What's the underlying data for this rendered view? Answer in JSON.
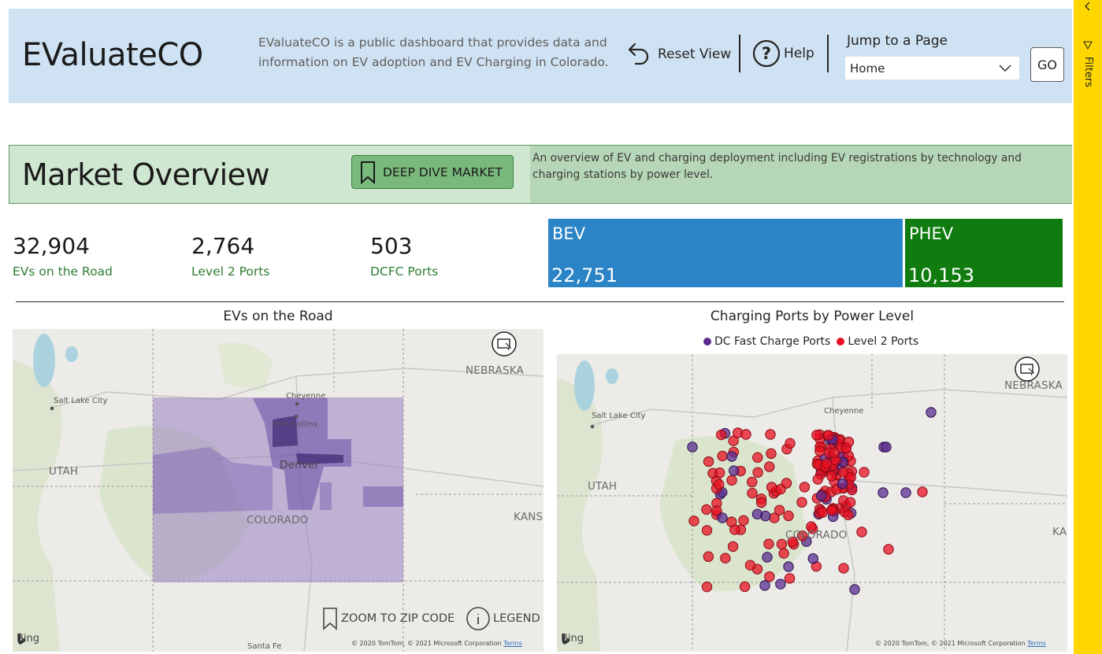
{
  "header": {
    "title": "EValuateCO",
    "description": "EValuateCO is a public dashboard that provides data and information on EV adoption and EV Charging in Colorado.",
    "reset_label": "Reset View",
    "help_label": "Help",
    "jump_label": "Jump to a Page",
    "page_select_value": "Home",
    "go_label": "GO"
  },
  "filters_pane": {
    "label": "Filters"
  },
  "market": {
    "title": "Market Overview",
    "deep_dive_label": "DEEP DIVE MARKET",
    "description": "An overview of EV and charging deployment including EV registrations by technology and charging stations by power level."
  },
  "kpis": [
    {
      "value": "32,904",
      "label": "EVs on the Road"
    },
    {
      "value": "2,764",
      "label": "Level 2 Ports"
    },
    {
      "value": "503",
      "label": "DCFC Ports"
    }
  ],
  "tech_split": {
    "bev": {
      "name": "BEV",
      "value": "22,751",
      "color": "#2a84c6"
    },
    "phev": {
      "name": "PHEV",
      "value": "10,153",
      "color": "#107c10"
    }
  },
  "map_left": {
    "title": "EVs on the Road",
    "labels": {
      "nebraska": "NEBRASKA",
      "utah": "UTAH",
      "colorado": "COLORADO",
      "kansas": "KANSA",
      "salt_lake": "Salt Lake City",
      "cheyenne": "Cheyenne",
      "fort_collins": "Fort Collins",
      "denver": "Denver",
      "santa_fe": "Santa Fe"
    },
    "zoom_zip_label": "ZOOM TO ZIP CODE",
    "legend_label": "LEGEND",
    "bing": "Bing",
    "copyright": "© 2020 TomTom, © 2021 Microsoft Corporation",
    "terms": "Terms"
  },
  "map_right": {
    "title": "Charging Ports by Power Level",
    "legend": [
      {
        "name": "DC Fast Charge Ports",
        "color": "#5c2d91"
      },
      {
        "name": "Level 2 Ports",
        "color": "#e81123"
      }
    ],
    "labels": {
      "nebraska": "NEBRASKA",
      "utah": "UTAH",
      "colorado": "COLORADO",
      "kansas": "KA",
      "salt_lake": "Salt Lake City",
      "cheyenne": "Cheyenne"
    },
    "bing": "Bing",
    "copyright": "© 2020 TomTom, © 2021 Microsoft Corporation",
    "terms": "Terms"
  },
  "colors": {
    "header_bg": "#cfe2f3",
    "market_bg": "#cfe6d0",
    "filters_bg": "#ffd700",
    "kpi_label": "#2e7d32"
  }
}
